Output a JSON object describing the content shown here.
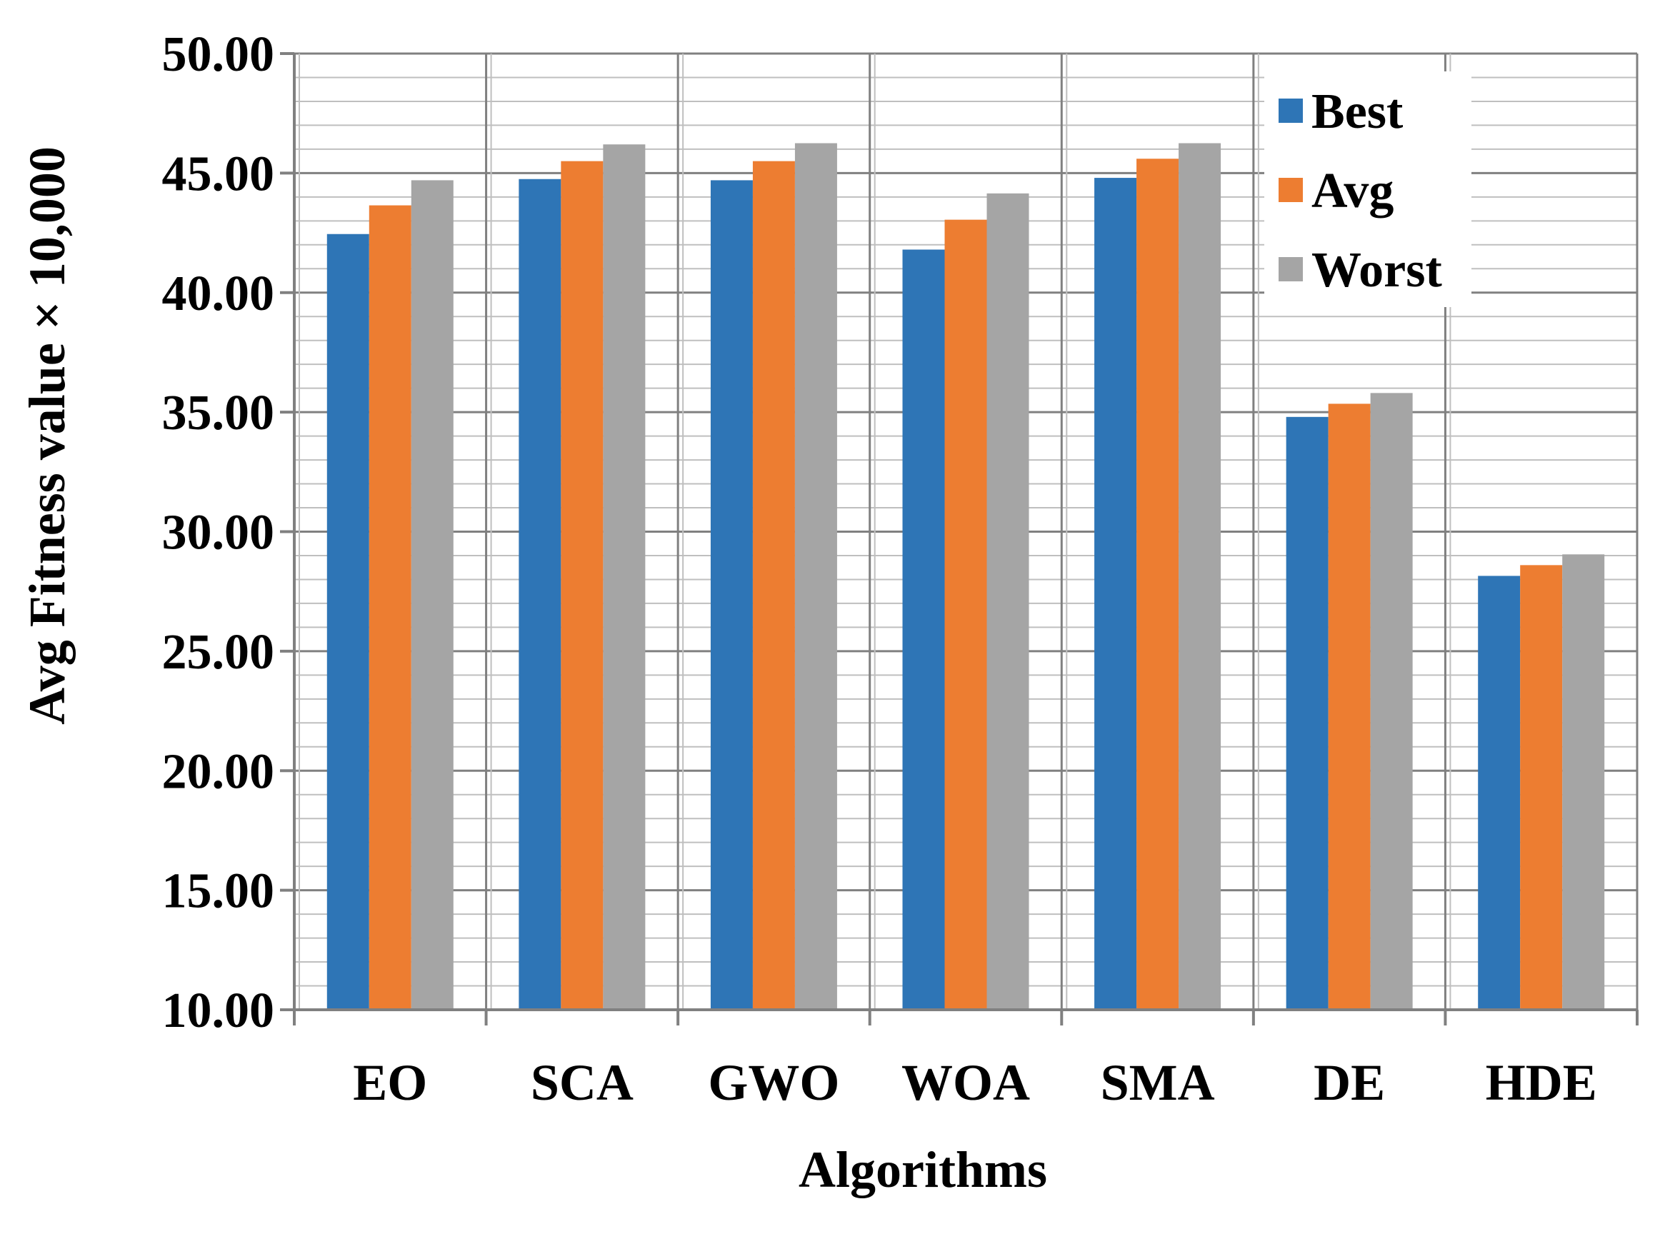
{
  "chart_data": {
    "type": "bar",
    "title": "",
    "xlabel": "Algorithms",
    "ylabel": "Avg Fitness value  × 10,000",
    "categories": [
      "EO",
      "SCA",
      "GWO",
      "WOA",
      "SMA",
      "DE",
      "HDE"
    ],
    "series": [
      {
        "name": "Best",
        "color": "#2E75B6",
        "values": [
          42.45,
          44.75,
          44.7,
          41.8,
          44.8,
          34.8,
          28.15
        ]
      },
      {
        "name": "Avg",
        "color": "#ED7D31",
        "values": [
          43.65,
          45.5,
          45.5,
          43.05,
          45.6,
          35.35,
          28.6
        ]
      },
      {
        "name": "Worst",
        "color": "#A5A5A5",
        "values": [
          44.7,
          46.2,
          46.25,
          44.15,
          46.25,
          35.8,
          29.05
        ]
      }
    ],
    "ylim": [
      10,
      50
    ],
    "y_major_step": 5,
    "y_minor_step": 1,
    "y_tick_labels": [
      "10.00",
      "15.00",
      "20.00",
      "25.00",
      "30.00",
      "35.00",
      "40.00",
      "45.00",
      "50.00"
    ],
    "grid": true,
    "legend_position": "top-right"
  },
  "style": {
    "grid_color": "#BFBFBF",
    "axis_color": "#808080",
    "background": "#ffffff"
  }
}
